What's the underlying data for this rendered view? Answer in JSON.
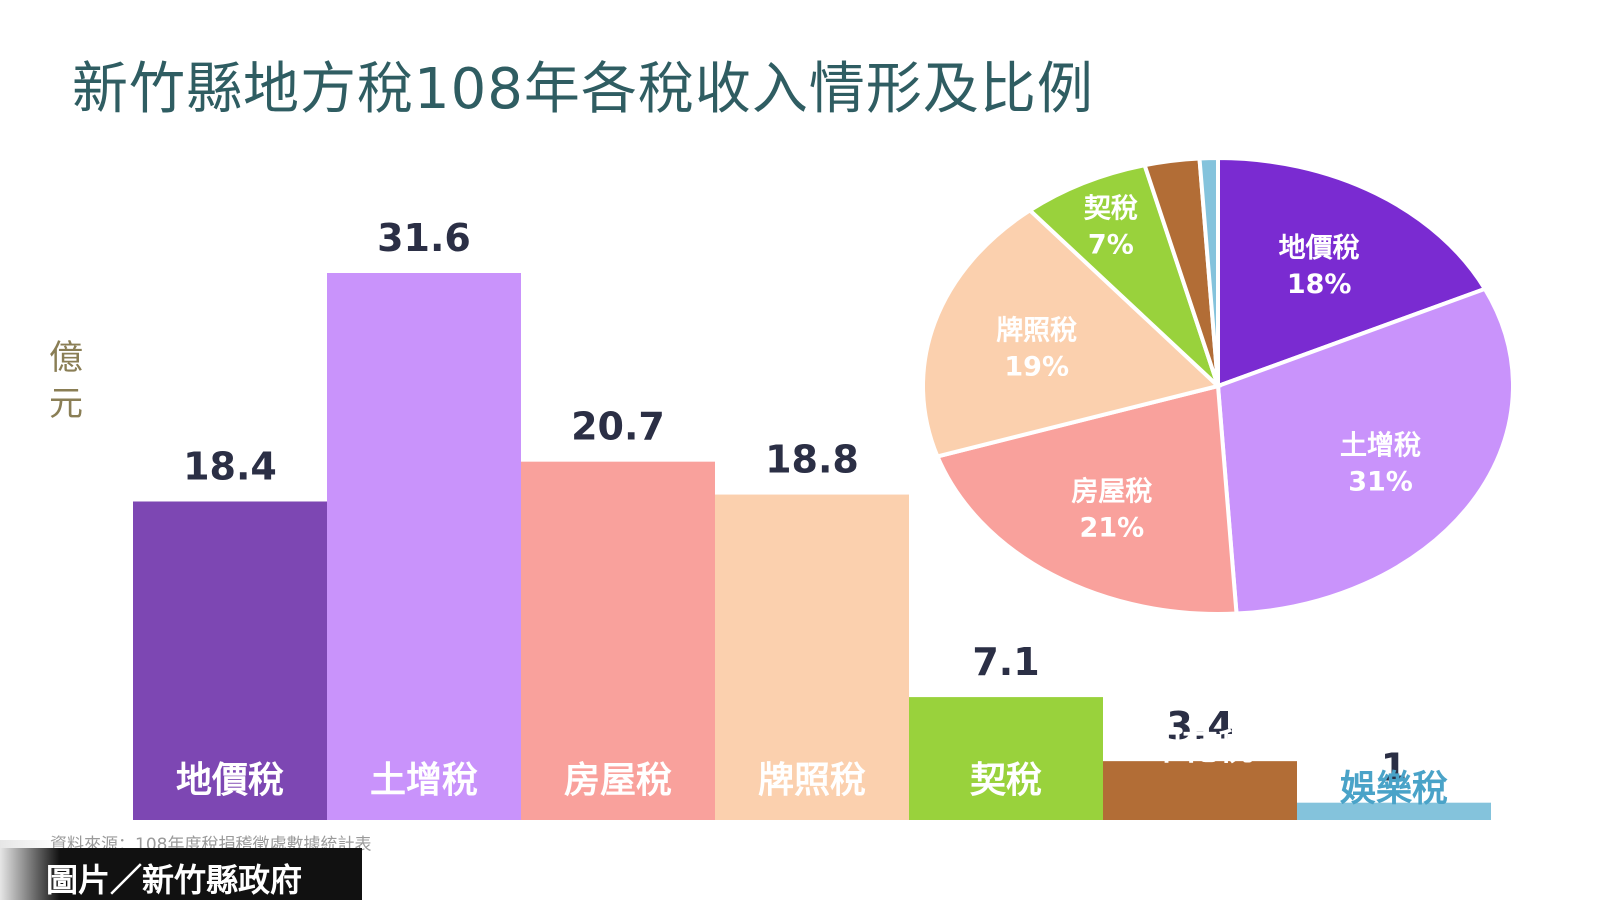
{
  "chart_data": [
    {
      "type": "bar",
      "title": "新竹縣地方稅108年各稅收入情形及比例",
      "ylabel": "億元",
      "categories": [
        "地價稅",
        "土增稅",
        "房屋稅",
        "牌照稅",
        "契稅",
        "印花稅",
        "娛樂稅"
      ],
      "values": [
        18.4,
        31.6,
        20.7,
        18.8,
        7.1,
        3.4,
        1
      ],
      "value_labels": [
        "18.4",
        "31.6",
        "20.7",
        "18.8",
        "7.1",
        "3.4",
        "1"
      ],
      "colors": [
        "#7d47b3",
        "#c993fb",
        "#f9a19c",
        "#fbd0ae",
        "#99d23c",
        "#b26d36",
        "#84c3dc"
      ],
      "label_colors": [
        "#ffffff",
        "#ffffff",
        "#ffffff",
        "#ffffff",
        "#ffffff",
        "#ffffff",
        "#4aa3c8"
      ],
      "ylim": [
        0,
        31.6
      ],
      "grid": false,
      "legend": "none"
    },
    {
      "type": "pie",
      "slices": [
        {
          "label": "地價稅",
          "percent_label": "18%",
          "value": 18,
          "color": "#7a2bd1"
        },
        {
          "label": "土增稅",
          "percent_label": "31%",
          "value": 31,
          "color": "#c993fb"
        },
        {
          "label": "房屋稅",
          "percent_label": "21%",
          "value": 21,
          "color": "#f9a19c"
        },
        {
          "label": "牌照稅",
          "percent_label": "19%",
          "value": 19,
          "color": "#fbd0ae"
        },
        {
          "label": "契稅",
          "percent_label": "7%",
          "value": 7,
          "color": "#99d23c"
        },
        {
          "label": "",
          "percent_label": "",
          "value": 3,
          "color": "#b26d36"
        },
        {
          "label": "",
          "percent_label": "",
          "value": 1,
          "color": "#84c3dc"
        }
      ],
      "start_angle_deg": 0,
      "legend": "none"
    }
  ],
  "source_note": "資料來源：108年度稅捐稽徵處數據統計表",
  "credit": "圖片／新竹縣政府",
  "colors": {
    "title": "#2f5d62",
    "ylabel": "#8a7e55",
    "value_text": "#2b2f45"
  }
}
